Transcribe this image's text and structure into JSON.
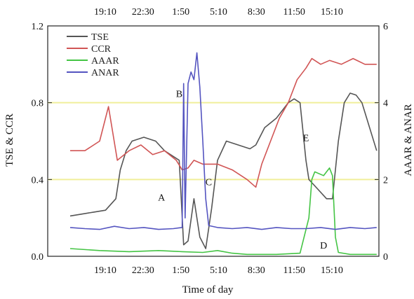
{
  "chart_data": {
    "type": "line",
    "title": "",
    "xlabel": "Time of day",
    "ylabel_left": "TSE & CCR",
    "ylabel_right": "AAAR & ANAR",
    "xticks": [
      "19:10",
      "22:30",
      "1:50",
      "5:10",
      "8:30",
      "11:50",
      "15:10"
    ],
    "top_xticks": [
      "19:10",
      "22:30",
      "1:50",
      "5:10",
      "8:30",
      "11:50",
      "15:10"
    ],
    "xlim": [
      0,
      1
    ],
    "ylim_left": [
      0,
      1.2
    ],
    "ylim_right": [
      0,
      6
    ],
    "yticks_left": [
      "0.0",
      "0.4",
      "0.8",
      "1.2"
    ],
    "yticks_right": [
      "0",
      "2",
      "4",
      "6"
    ],
    "yticks_left_values": [
      0,
      0.4,
      0.8,
      1.2
    ],
    "yticks_right_values": [
      0,
      2,
      4,
      6
    ],
    "reference_lines_left": [
      0.4,
      0.8
    ],
    "reference_line_color": "#f0ef9a",
    "legend": {
      "position": "top-left",
      "entries": [
        "TSE",
        "CCR",
        "AAAR",
        "ANAR"
      ]
    },
    "series": [
      {
        "name": "TSE",
        "axis": "left",
        "color": "#555555",
        "points": [
          [
            0.0,
            0.21
          ],
          [
            0.04,
            0.22
          ],
          [
            0.08,
            0.23
          ],
          [
            0.12,
            0.24
          ],
          [
            0.155,
            0.3
          ],
          [
            0.17,
            0.45
          ],
          [
            0.19,
            0.55
          ],
          [
            0.21,
            0.6
          ],
          [
            0.25,
            0.62
          ],
          [
            0.29,
            0.6
          ],
          [
            0.32,
            0.55
          ],
          [
            0.35,
            0.52
          ],
          [
            0.37,
            0.5
          ],
          [
            0.385,
            0.06
          ],
          [
            0.4,
            0.08
          ],
          [
            0.42,
            0.3
          ],
          [
            0.44,
            0.1
          ],
          [
            0.46,
            0.04
          ],
          [
            0.48,
            0.25
          ],
          [
            0.5,
            0.5
          ],
          [
            0.53,
            0.6
          ],
          [
            0.57,
            0.58
          ],
          [
            0.61,
            0.56
          ],
          [
            0.63,
            0.58
          ],
          [
            0.66,
            0.67
          ],
          [
            0.7,
            0.72
          ],
          [
            0.74,
            0.8
          ],
          [
            0.76,
            0.82
          ],
          [
            0.78,
            0.8
          ],
          [
            0.8,
            0.5
          ],
          [
            0.81,
            0.4
          ],
          [
            0.84,
            0.35
          ],
          [
            0.87,
            0.3
          ],
          [
            0.89,
            0.3
          ],
          [
            0.91,
            0.6
          ],
          [
            0.93,
            0.8
          ],
          [
            0.95,
            0.85
          ],
          [
            0.97,
            0.84
          ],
          [
            0.99,
            0.8
          ],
          [
            1.0,
            0.75
          ],
          [
            1.02,
            0.65
          ],
          [
            1.04,
            0.55
          ]
        ]
      },
      {
        "name": "CCR",
        "axis": "left",
        "color": "#d15555",
        "points": [
          [
            0.0,
            0.55
          ],
          [
            0.05,
            0.55
          ],
          [
            0.1,
            0.6
          ],
          [
            0.13,
            0.78
          ],
          [
            0.16,
            0.5
          ],
          [
            0.2,
            0.55
          ],
          [
            0.24,
            0.58
          ],
          [
            0.28,
            0.53
          ],
          [
            0.32,
            0.55
          ],
          [
            0.36,
            0.5
          ],
          [
            0.38,
            0.45
          ],
          [
            0.4,
            0.46
          ],
          [
            0.42,
            0.5
          ],
          [
            0.45,
            0.48
          ],
          [
            0.5,
            0.48
          ],
          [
            0.55,
            0.45
          ],
          [
            0.6,
            0.4
          ],
          [
            0.63,
            0.36
          ],
          [
            0.65,
            0.48
          ],
          [
            0.68,
            0.6
          ],
          [
            0.71,
            0.72
          ],
          [
            0.74,
            0.8
          ],
          [
            0.77,
            0.92
          ],
          [
            0.8,
            0.98
          ],
          [
            0.82,
            1.03
          ],
          [
            0.85,
            1.0
          ],
          [
            0.88,
            1.02
          ],
          [
            0.92,
            1.0
          ],
          [
            0.96,
            1.03
          ],
          [
            1.0,
            1.0
          ],
          [
            1.04,
            1.0
          ]
        ]
      },
      {
        "name": "AAAR",
        "axis": "right",
        "color": "#44c444",
        "points": [
          [
            0.0,
            0.2
          ],
          [
            0.1,
            0.15
          ],
          [
            0.2,
            0.12
          ],
          [
            0.3,
            0.15
          ],
          [
            0.38,
            0.12
          ],
          [
            0.45,
            0.1
          ],
          [
            0.5,
            0.15
          ],
          [
            0.55,
            0.08
          ],
          [
            0.6,
            0.05
          ],
          [
            0.7,
            0.05
          ],
          [
            0.78,
            0.08
          ],
          [
            0.81,
            1.0
          ],
          [
            0.82,
            2.0
          ],
          [
            0.83,
            2.2
          ],
          [
            0.86,
            2.1
          ],
          [
            0.88,
            2.3
          ],
          [
            0.89,
            2.1
          ],
          [
            0.9,
            0.5
          ],
          [
            0.91,
            0.1
          ],
          [
            0.95,
            0.05
          ],
          [
            1.0,
            0.05
          ],
          [
            1.04,
            0.05
          ]
        ]
      },
      {
        "name": "ANAR",
        "axis": "right",
        "color": "#5454c0",
        "points": [
          [
            0.0,
            0.75
          ],
          [
            0.05,
            0.72
          ],
          [
            0.1,
            0.7
          ],
          [
            0.15,
            0.78
          ],
          [
            0.2,
            0.72
          ],
          [
            0.25,
            0.75
          ],
          [
            0.3,
            0.7
          ],
          [
            0.35,
            0.72
          ],
          [
            0.38,
            0.75
          ],
          [
            0.385,
            4.5
          ],
          [
            0.39,
            1.0
          ],
          [
            0.4,
            4.5
          ],
          [
            0.41,
            4.8
          ],
          [
            0.42,
            4.6
          ],
          [
            0.43,
            5.3
          ],
          [
            0.44,
            4.4
          ],
          [
            0.45,
            3.0
          ],
          [
            0.46,
            1.5
          ],
          [
            0.47,
            0.8
          ],
          [
            0.5,
            0.75
          ],
          [
            0.55,
            0.72
          ],
          [
            0.6,
            0.75
          ],
          [
            0.65,
            0.7
          ],
          [
            0.7,
            0.75
          ],
          [
            0.75,
            0.72
          ],
          [
            0.8,
            0.72
          ],
          [
            0.85,
            0.75
          ],
          [
            0.9,
            0.7
          ],
          [
            0.95,
            0.75
          ],
          [
            1.0,
            0.72
          ],
          [
            1.04,
            0.75
          ]
        ]
      }
    ],
    "annotations": [
      {
        "label": "A",
        "x": 0.31,
        "y": 0.29,
        "axis": "left"
      },
      {
        "label": "B",
        "x": 0.37,
        "y": 0.83,
        "axis": "left"
      },
      {
        "label": "C",
        "x": 0.47,
        "y": 0.37,
        "axis": "left"
      },
      {
        "label": "D",
        "x": 0.86,
        "y": 0.04,
        "axis": "left"
      },
      {
        "label": "E",
        "x": 0.8,
        "y": 0.6,
        "axis": "left"
      }
    ]
  }
}
